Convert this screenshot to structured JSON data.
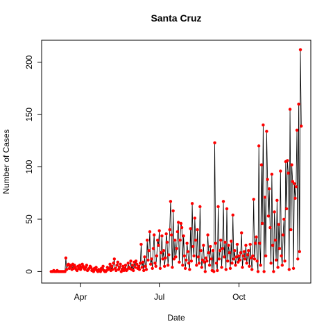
{
  "chart_data": {
    "type": "line",
    "title": "Santa Cruz",
    "xlabel": "Date",
    "ylabel": "Number of Cases",
    "xlim": [
      47,
      358
    ],
    "ylim": [
      -11,
      221
    ],
    "xticks": [
      {
        "value": 92,
        "label": "Apr"
      },
      {
        "value": 183,
        "label": "Jul"
      },
      {
        "value": 275,
        "label": "Oct"
      }
    ],
    "yticks": [
      0,
      50,
      100,
      150,
      200
    ],
    "x": [
      58,
      59,
      60,
      61,
      62,
      63,
      64,
      65,
      66,
      67,
      68,
      69,
      70,
      71,
      72,
      73,
      74,
      75,
      76,
      77,
      78,
      79,
      80,
      81,
      82,
      83,
      84,
      85,
      86,
      87,
      88,
      89,
      90,
      91,
      92,
      93,
      94,
      95,
      96,
      97,
      98,
      99,
      100,
      101,
      102,
      103,
      104,
      105,
      106,
      107,
      108,
      109,
      110,
      111,
      112,
      113,
      114,
      115,
      116,
      117,
      118,
      119,
      120,
      121,
      122,
      123,
      124,
      125,
      126,
      127,
      128,
      129,
      130,
      131,
      132,
      133,
      134,
      135,
      136,
      137,
      138,
      139,
      140,
      141,
      142,
      143,
      144,
      145,
      146,
      147,
      148,
      149,
      150,
      151,
      152,
      153,
      154,
      155,
      156,
      157,
      158,
      159,
      160,
      161,
      162,
      163,
      164,
      165,
      166,
      167,
      168,
      169,
      170,
      171,
      172,
      173,
      174,
      175,
      176,
      177,
      178,
      179,
      180,
      181,
      182,
      183,
      184,
      185,
      186,
      187,
      188,
      189,
      190,
      191,
      192,
      193,
      194,
      195,
      196,
      197,
      198,
      199,
      200,
      201,
      202,
      203,
      204,
      205,
      206,
      207,
      208,
      209,
      210,
      211,
      212,
      213,
      214,
      215,
      216,
      217,
      218,
      219,
      220,
      221,
      222,
      223,
      224,
      225,
      226,
      227,
      228,
      229,
      230,
      231,
      232,
      233,
      234,
      235,
      236,
      237,
      238,
      239,
      240,
      241,
      242,
      243,
      244,
      245,
      246,
      247,
      248,
      249,
      250,
      251,
      252,
      253,
      254,
      255,
      256,
      257,
      258,
      259,
      260,
      261,
      262,
      263,
      264,
      265,
      266,
      267,
      268,
      269,
      270,
      271,
      272,
      273,
      274,
      275,
      276,
      277,
      278,
      279,
      280,
      281,
      282,
      283,
      284,
      285,
      286,
      287,
      288,
      289,
      290,
      291,
      292,
      293,
      294,
      295,
      296,
      297,
      298,
      299,
      300,
      301,
      302,
      303,
      304,
      305,
      306,
      307,
      308,
      309,
      310,
      311,
      312,
      313,
      314,
      315,
      316,
      317,
      318,
      319,
      320,
      321,
      322,
      323,
      324,
      325,
      326,
      327,
      328,
      329,
      330,
      331,
      332,
      333,
      334,
      335,
      336,
      337,
      338,
      339,
      340,
      341,
      342,
      343,
      344,
      345,
      346,
      347
    ],
    "series": [
      {
        "name": "Cases",
        "color": "#ff0000",
        "line_color": "#000000",
        "values": [
          0,
          0,
          0,
          1,
          0,
          0,
          0,
          1,
          0,
          0,
          0,
          0,
          0,
          0,
          0,
          0,
          0,
          13,
          2,
          6,
          7,
          3,
          6,
          5,
          2,
          7,
          3,
          6,
          4,
          2,
          1,
          5,
          3,
          6,
          2,
          4,
          7,
          5,
          3,
          2,
          4,
          6,
          1,
          2,
          3,
          5,
          4,
          1,
          2,
          0,
          3,
          2,
          4,
          1,
          0,
          2,
          1,
          0,
          3,
          2,
          5,
          1,
          0,
          0,
          1,
          4,
          2,
          3,
          7,
          1,
          5,
          2,
          8,
          12,
          3,
          1,
          6,
          9,
          2,
          4,
          7,
          0,
          2,
          5,
          1,
          3,
          6,
          1,
          2,
          8,
          4,
          3,
          10,
          2,
          6,
          1,
          9,
          4,
          10,
          7,
          3,
          5,
          2,
          8,
          26,
          4,
          9,
          1,
          14,
          5,
          2,
          30,
          11,
          20,
          38,
          7,
          12,
          3,
          22,
          35,
          8,
          5,
          15,
          30,
          25,
          39,
          3,
          18,
          34,
          12,
          20,
          5,
          13,
          36,
          28,
          6,
          16,
          40,
          67,
          35,
          4,
          58,
          12,
          30,
          14,
          22,
          38,
          47,
          9,
          30,
          46,
          42,
          6,
          34,
          15,
          3,
          11,
          27,
          19,
          8,
          2,
          41,
          10,
          65,
          24,
          15,
          51,
          30,
          6,
          40,
          14,
          8,
          62,
          20,
          4,
          11,
          25,
          9,
          0,
          13,
          10,
          35,
          18,
          6,
          24,
          12,
          1,
          20,
          0,
          123,
          27,
          8,
          1,
          62,
          12,
          20,
          30,
          4,
          22,
          67,
          14,
          28,
          2,
          60,
          10,
          25,
          18,
          3,
          29,
          8,
          54,
          12,
          20,
          6,
          14,
          26,
          9,
          15,
          11,
          18,
          37,
          4,
          15,
          19,
          12,
          25,
          8,
          16,
          20,
          5,
          26,
          13,
          2,
          15,
          69,
          12,
          27,
          33,
          10,
          0,
          120,
          27,
          6,
          102,
          46,
          140,
          0,
          71,
          15,
          134,
          88,
          53,
          79,
          42,
          8,
          93,
          25,
          0,
          57,
          30,
          11,
          68,
          4,
          45,
          22,
          96,
          15,
          6,
          35,
          50,
          10,
          105,
          60,
          106,
          94,
          2,
          155,
          40,
          102,
          86,
          3,
          84,
          70,
          81,
          135,
          12,
          160,
          19,
          212,
          139
        ]
      }
    ]
  }
}
